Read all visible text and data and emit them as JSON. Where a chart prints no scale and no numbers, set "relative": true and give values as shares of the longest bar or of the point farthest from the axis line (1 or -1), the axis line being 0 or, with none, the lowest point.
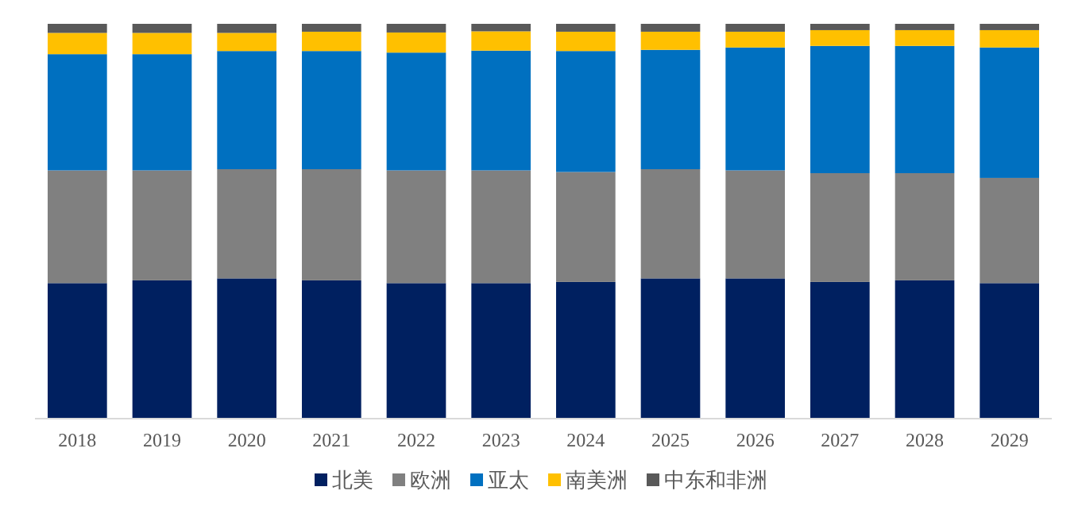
{
  "chart_data": {
    "type": "bar",
    "stacked": true,
    "relative": true,
    "legend": "bottom",
    "categories": [
      "2018",
      "2019",
      "2020",
      "2021",
      "2022",
      "2023",
      "2024",
      "2025",
      "2026",
      "2027",
      "2028",
      "2029"
    ],
    "series": [
      {
        "name": "北美",
        "color": "#002060",
        "values": [
          0.342,
          0.349,
          0.354,
          0.349,
          0.342,
          0.342,
          0.345,
          0.354,
          0.354,
          0.345,
          0.349,
          0.342
        ]
      },
      {
        "name": "欧洲",
        "color": "#808080",
        "values": [
          0.286,
          0.279,
          0.277,
          0.282,
          0.286,
          0.286,
          0.279,
          0.277,
          0.274,
          0.276,
          0.272,
          0.267
        ]
      },
      {
        "name": "亚太",
        "color": "#0070c0",
        "values": [
          0.295,
          0.295,
          0.3,
          0.3,
          0.299,
          0.304,
          0.307,
          0.303,
          0.312,
          0.323,
          0.323,
          0.331
        ]
      },
      {
        "name": "南美洲",
        "color": "#ffc000",
        "values": [
          0.054,
          0.054,
          0.046,
          0.049,
          0.051,
          0.049,
          0.049,
          0.046,
          0.04,
          0.04,
          0.04,
          0.044
        ]
      },
      {
        "name": "中东和非洲",
        "color": "#595959",
        "values": [
          0.023,
          0.023,
          0.023,
          0.02,
          0.022,
          0.019,
          0.02,
          0.02,
          0.02,
          0.016,
          0.016,
          0.016
        ]
      }
    ]
  }
}
